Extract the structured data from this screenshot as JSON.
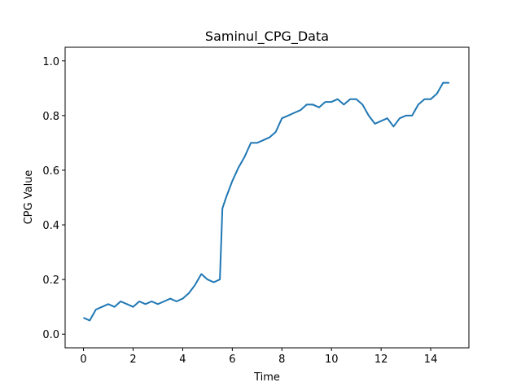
{
  "chart_data": {
    "type": "line",
    "title": "Saminul_CPG_Data",
    "xlabel": "Time",
    "ylabel": "CPG Value",
    "xlim": [
      -0.74,
      15.54
    ],
    "ylim": [
      -0.05,
      1.05
    ],
    "xticks": [
      0,
      2,
      4,
      6,
      8,
      10,
      12,
      14
    ],
    "xtick_labels": [
      "0",
      "2",
      "4",
      "6",
      "8",
      "10",
      "12",
      "14"
    ],
    "yticks": [
      0.0,
      0.2,
      0.4,
      0.6,
      0.8,
      1.0
    ],
    "ytick_labels": [
      "0.0",
      "0.2",
      "0.4",
      "0.6",
      "0.8",
      "1.0"
    ],
    "grid": false,
    "series": [
      {
        "color": "#1f77b4",
        "x": [
          0.0,
          0.25,
          0.5,
          0.75,
          1.0,
          1.25,
          1.5,
          1.75,
          2.0,
          2.25,
          2.5,
          2.75,
          3.0,
          3.25,
          3.5,
          3.75,
          4.0,
          4.25,
          4.5,
          4.75,
          5.0,
          5.25,
          5.5,
          5.6,
          5.75,
          6.0,
          6.25,
          6.5,
          6.75,
          7.0,
          7.25,
          7.5,
          7.75,
          8.0,
          8.25,
          8.5,
          8.75,
          9.0,
          9.25,
          9.5,
          9.75,
          10.0,
          10.25,
          10.5,
          10.75,
          11.0,
          11.25,
          11.5,
          11.75,
          12.0,
          12.25,
          12.5,
          12.75,
          13.0,
          13.25,
          13.5,
          13.75,
          14.0,
          14.25,
          14.5,
          14.75
        ],
        "y": [
          0.06,
          0.05,
          0.09,
          0.1,
          0.11,
          0.1,
          0.12,
          0.11,
          0.1,
          0.12,
          0.11,
          0.12,
          0.11,
          0.12,
          0.13,
          0.12,
          0.13,
          0.15,
          0.18,
          0.22,
          0.2,
          0.19,
          0.2,
          0.46,
          0.5,
          0.56,
          0.61,
          0.65,
          0.7,
          0.7,
          0.71,
          0.72,
          0.74,
          0.79,
          0.8,
          0.81,
          0.82,
          0.84,
          0.84,
          0.83,
          0.85,
          0.85,
          0.86,
          0.84,
          0.86,
          0.86,
          0.84,
          0.8,
          0.77,
          0.78,
          0.79,
          0.76,
          0.79,
          0.8,
          0.8,
          0.84,
          0.86,
          0.86,
          0.88,
          0.92,
          0.92
        ]
      }
    ]
  }
}
